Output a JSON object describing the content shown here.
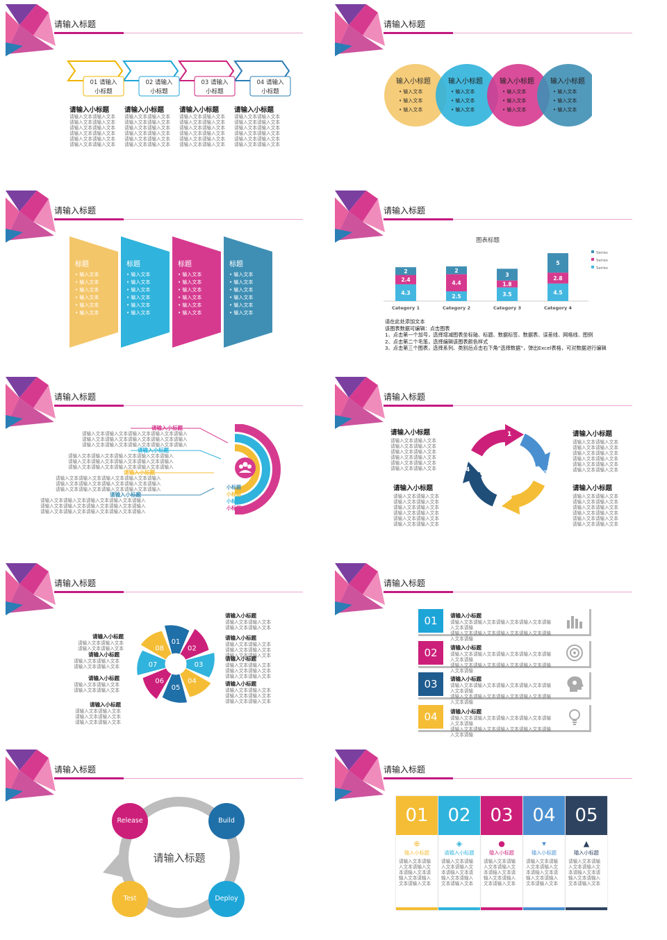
{
  "colors": {
    "yellow": "#f4bd35",
    "cyan": "#30b3dc",
    "magenta": "#d63a8f",
    "teal": "#3f8fb5",
    "navy": "#1f4e79",
    "grey": "#bdbdbd",
    "accent": "#c2197f"
  },
  "slide_title": "请输入标题",
  "s1": {
    "arrows": [
      {
        "label": "01 请输入小标题",
        "l1": "01 请输入",
        "l2": "小标题",
        "color": "#f0b400"
      },
      {
        "label": "02 请输入小标题",
        "l1": "02 请输入",
        "l2": "小标题",
        "color": "#1ea5d8"
      },
      {
        "label": "03 请输入小标题",
        "l1": "03 请输入",
        "l2": "小标题",
        "color": "#cc1f7a"
      },
      {
        "label": "04 请输入小标题",
        "l1": "04 请输入",
        "l2": "小标题",
        "color": "#2a7db5"
      }
    ],
    "heading": "请输入小标题",
    "body_line": "请输入文本请输入文本"
  },
  "s2": {
    "circle_title": "输入小标题",
    "bullet": "输入文本"
  },
  "s3": {
    "title": "标题",
    "bullet": "输入文本"
  },
  "s4": {
    "chart_data": {
      "type": "bar",
      "title": "图表标题",
      "categories": [
        "Category 1",
        "Category 2",
        "Category 3",
        "Category 4"
      ],
      "series": [
        {
          "name": "Series 1",
          "values": [
            4.3,
            2.5,
            3.5,
            4.5
          ],
          "color": "#44b7e0"
        },
        {
          "name": "Series 2",
          "values": [
            2.4,
            4.4,
            1.8,
            2.8
          ],
          "color": "#d63a8f"
        },
        {
          "name": "Series 3",
          "values": [
            2,
            2,
            3,
            5
          ],
          "color": "#3f8fb5"
        }
      ],
      "stacked": true,
      "legend": "right"
    },
    "notes": [
      "请在此处添加文本",
      "该图表数据可编辑：点击图表",
      "1、点击第一个加号，选择增减图表坐标轴、标题、数据标签、数据表、误差线、网格线、图例",
      "2、点击第二个毛笔，选择编辑该图表颜色样式",
      "3、点击第三个图表，选择系列、类别后点击右下角“选择数据”，弹出Excel表格，可对数据进行编辑"
    ]
  },
  "s5": {
    "subtitle": "请输入小标题",
    "body": "请输入文本请输入文本请输入文本请输入文本请输入",
    "small_labels": [
      "小标题",
      "小标题",
      "小标题",
      "小标题"
    ]
  },
  "s6": {
    "subtitle": "请输入小标题",
    "body": "请输入文本请输入文本",
    "numbers": [
      "1",
      "2",
      "3",
      "4"
    ]
  },
  "s7": {
    "numbers": [
      "01",
      "02",
      "03",
      "04",
      "05",
      "06",
      "07",
      "08"
    ],
    "subtitle": "请输入小标题",
    "body": "请输入文本请输入文本"
  },
  "s8": {
    "numbers": [
      "01",
      "02",
      "03",
      "04"
    ],
    "subtitle": "请输入小标题",
    "body": "请输入文本请输入文本请输入文本请输入文本请输入文本请输"
  },
  "s9": {
    "center": "请输入标题",
    "nodes": [
      "Release",
      "Build",
      "Deploy",
      "Test"
    ]
  },
  "s10": {
    "numbers": [
      "01",
      "02",
      "03",
      "04",
      "05"
    ],
    "subtitle": "输入小标题",
    "subtitle_alt": "请输入小标题",
    "body": "请输入文本请输入文本请输入文本请输入文本请输入文本请输入文本请输入文本"
  }
}
